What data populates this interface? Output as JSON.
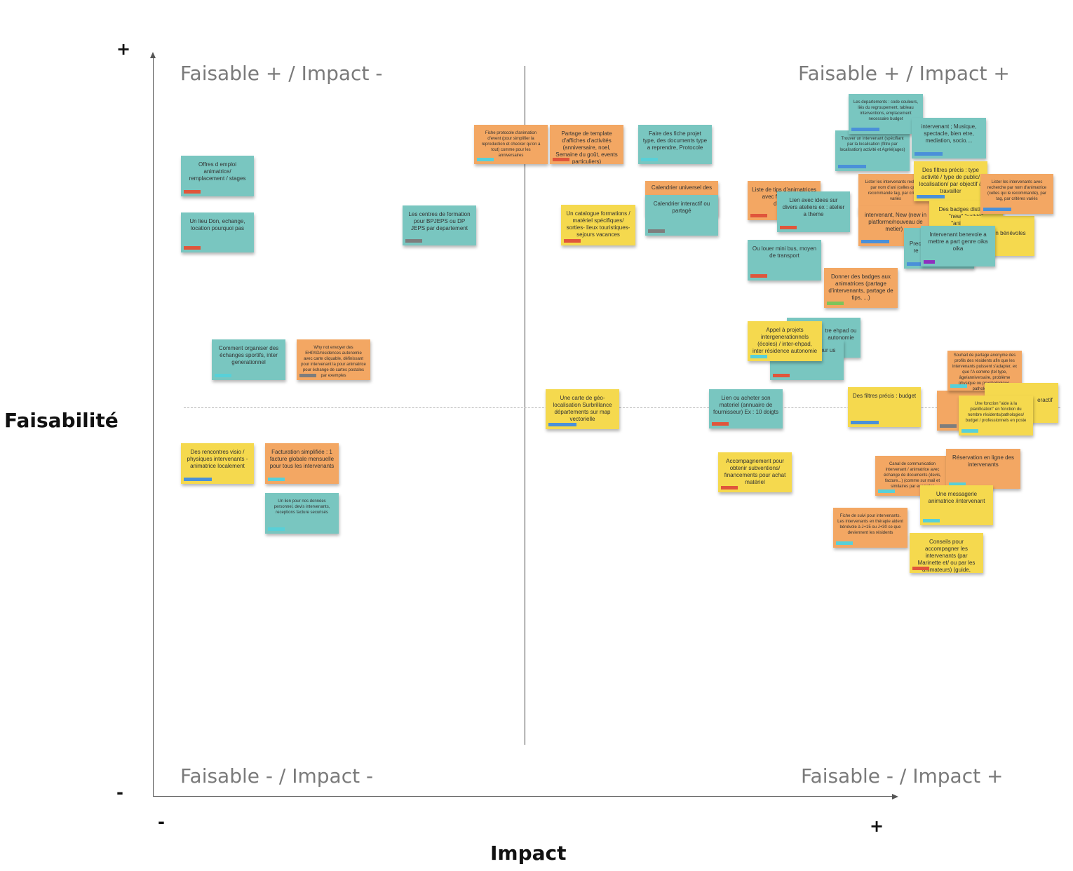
{
  "axes": {
    "y_title": "Faisabilité",
    "x_title": "Impact",
    "y_plus": "+",
    "y_minus": "-",
    "x_minus": "-",
    "x_plus": "+"
  },
  "quadrants": {
    "top_left": "Faisable + / Impact -",
    "top_right": "Faisable + / Impact +",
    "bottom_left": "Faisable - / Impact -",
    "bottom_right": "Faisable - / Impact +"
  },
  "colors": {
    "teal": "#79c6c0",
    "orange": "#f3a763",
    "yellow": "#f5d94e",
    "tag_red": "#e0553b",
    "tag_blue": "#4a90d9",
    "tag_cyan": "#58d0d8",
    "tag_grey": "#7d7d7d",
    "tag_green": "#7dc45a",
    "tag_purple": "#8e2fbf"
  },
  "notes": {
    "n01": "Offres d emploi animatrice/ remplacement / stages",
    "n02": "Un lieu Don, echange, location pourquoi pas",
    "n03": "Les centres de formation pour BPJEPS ou DP JEPS par departement",
    "n04": "Fiche protocole d'animation d'event (pour simplifier la reproduction et checker qu'on a tout) comme pour les anniversaires",
    "n05": "Partage de template d'affiches d'activités (anniversaire, noel, Semaine du goût, events particuliers)",
    "n06": "Faire des fiche projet type, des documents type a reprendre, Protocole",
    "n07": "Un catalogue formations / matériel spécifiques/ sorties- lieux touristiques- sejours vacances",
    "n08": "Calendrier universel des",
    "n09": "Calendrier interactif ou partagé",
    "n10": "Comment organiser des échanges sportifs, inter generationnel",
    "n11": "Why not envoyer des EHPAD/résidences autonomie avec carte cliquable, définissant pour intervenant la pour animatrice pour échange de cartes postales par exemples",
    "n12": "Des rencontres visio / physiques intervenants - animatrice localement",
    "n13": "Facturation simplifiée : 1 facture globale mensuelle pour tous les intervenants",
    "n14": "Un lien pour nos données personnel, devis intervenants, receptions facture securisés",
    "n15": "Une carte de géo-localisation Surbrillance départements sur map vectorielle",
    "n16": "Lien ou acheter son materiel (annuaire de fournisseur) Ex : 10 doigts",
    "n17": "Accompagnement pour obtenir subventions/ financements pour achat matériel",
    "n18": "Liste de tips d'animatrices avec fil recherche d'animat",
    "n19": "Lien avec idees sur divers ateliers ex : atelier a theme",
    "n20": "Ou louer mini bus, moyen de transport",
    "n21": "Donner des badges aux animatrices (partage d'intervenants, partage de tips, ...)",
    "n22": "Appel à projets intergenerationnels (écoles) / inter-ehpad, inter résidence autonomie",
    "n23": "tre ehpad ou autonomie",
    "n24": "pour us",
    "n25": "Des filtres précis : budget",
    "n26": "Les departements : code couleurs, liés du regroupement, tableau interventions, emplacement necessaire budget",
    "n27": "Trouver un intervenant (spécifiant par la localisation (filtre par localisation) activité et Agréé(ages)",
    "n28": "intervenant ; Musique, spectacle, bien etre, mediation, socio....",
    "n29": "Lister les intervenants recherche par nom d'ani (celles qui le recommande tag, par criteres variés",
    "n30": "Des filtres précis : type activité / type de public/ localisation/ par objectif à travailler",
    "n31": "Lister les intervenants avec recherche par nom d'animatrice (celles qui le recommande), par tag, par critères variés",
    "n32": "intervenant, New (new in platforme/nouveau de metier) ,",
    "n33": "Des badges distinctifs \"new\" \"validé\" \"animatrice\"",
    "n34": "Intervenant benevole a mettre a part genre oika oika",
    "n35": "n bénévoles",
    "n36": "Preci re",
    "n37": "Souhait de partage anonyme des profils des résidents afin que les intervenants puissent s'adapter, ex que l'A comme (tel type, âge/anniversaire, problème physique ou psychologique, pathologie...)",
    "n38": "Une fonction \"aide à la planification\" en fonction du nombre résidents/pathologies/ budget / professionnels en poste",
    "n39": "eractif",
    "n40": "Canal de communication intervenant / animatrice avec échange de documents (devis, facture...) (comme sur mail et similaires par exemple)",
    "n41": "Réservation en ligne des intervenants",
    "n42": "Une messagerie animatrice /intervenant",
    "n43": "Fiche de suivi pour intervenants. Les intervenants en thérapie aident bénévole à J+15 ou J+30 ce que deviennent les résidents",
    "n44": "Conseils pour accompagner les intervenants (par Marinette et/ ou par les animateurs) (guide, charte)"
  }
}
